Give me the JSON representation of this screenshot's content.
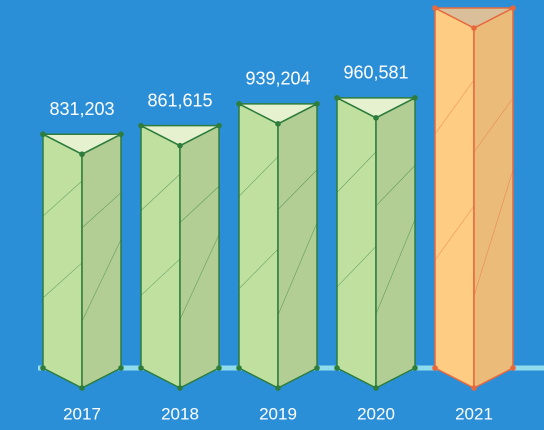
{
  "chart_data": {
    "type": "prism-bar",
    "categories": [
      "2017",
      "2018",
      "2019",
      "2020",
      "2021"
    ],
    "values": [
      831203,
      861615,
      939204,
      960581,
      1280000
    ],
    "value_labels": [
      "831,203",
      "861,615",
      "939,204",
      "960,581",
      null
    ],
    "colors": [
      "#b9d79a",
      "#b9d79a",
      "#b9d79a",
      "#b9d79a",
      "#f5c47e"
    ]
  }
}
